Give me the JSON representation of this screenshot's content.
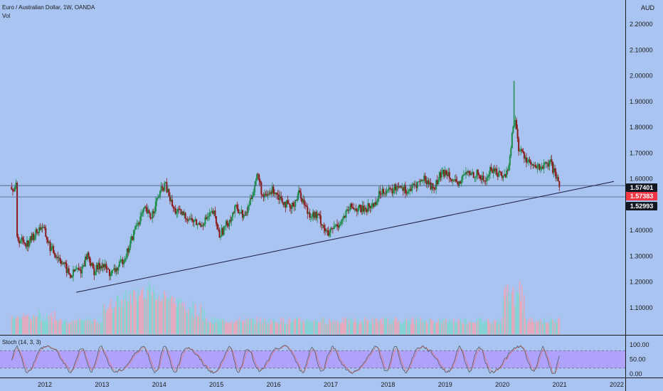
{
  "header": {
    "symbol_title": "Euro / Australian Dollar, 1W, OANDA",
    "volume_label": "Vol",
    "currency": "AUD"
  },
  "stoch": {
    "label": "Stoch (14, 3, 3)",
    "axis_ticks": [
      "100.00",
      "50.00",
      "0.00"
    ],
    "band_color": "#b197fc"
  },
  "price_axis": {
    "ticks": [
      "2.20000",
      "2.10000",
      "2.00000",
      "1.90000",
      "1.80000",
      "1.70000",
      "1.60000",
      "1.40000",
      "1.30000",
      "1.20000",
      "1.10000"
    ]
  },
  "time_axis": {
    "ticks": [
      "2012",
      "2013",
      "2014",
      "2015",
      "2016",
      "2017",
      "2018",
      "2019",
      "2020",
      "2021",
      "2022"
    ]
  },
  "price_badges": [
    {
      "label": "1.57401",
      "color": "#131722"
    },
    {
      "label": "1.57383",
      "color": "#f23645"
    },
    {
      "label": "1.52993",
      "color": "#131722"
    }
  ],
  "colors": {
    "background": "#a9c4f1",
    "up_candle": "#1e8c4a",
    "down_candle": "#8b1a1a",
    "trendline": "#1a1a40"
  },
  "chart_data": {
    "type": "candlestick",
    "symbol": "EURAUD",
    "interval": "1W",
    "y_range": [
      1.05,
      2.25
    ],
    "x_range": [
      2011.5,
      2022
    ],
    "price_path": [
      [
        2011.5,
        1.37
      ],
      [
        2011.7,
        1.35
      ],
      [
        2011.95,
        1.42
      ],
      [
        2012.1,
        1.33
      ],
      [
        2012.3,
        1.28
      ],
      [
        2012.45,
        1.22
      ],
      [
        2012.55,
        1.25
      ],
      [
        2012.62,
        1.24
      ],
      [
        2012.75,
        1.31
      ],
      [
        2012.85,
        1.24
      ],
      [
        2013.0,
        1.27
      ],
      [
        2013.15,
        1.23
      ],
      [
        2013.3,
        1.26
      ],
      [
        2013.45,
        1.32
      ],
      [
        2013.6,
        1.42
      ],
      [
        2013.75,
        1.48
      ],
      [
        2013.85,
        1.45
      ],
      [
        2014.0,
        1.54
      ],
      [
        2014.1,
        1.58
      ],
      [
        2014.25,
        1.48
      ],
      [
        2014.5,
        1.45
      ],
      [
        2014.7,
        1.42
      ],
      [
        2014.95,
        1.47
      ],
      [
        2015.05,
        1.38
      ],
      [
        2015.2,
        1.43
      ],
      [
        2015.35,
        1.49
      ],
      [
        2015.5,
        1.45
      ],
      [
        2015.65,
        1.56
      ],
      [
        2015.72,
        1.62
      ],
      [
        2015.82,
        1.52
      ],
      [
        2016.0,
        1.56
      ],
      [
        2016.15,
        1.52
      ],
      [
        2016.3,
        1.48
      ],
      [
        2016.45,
        1.55
      ],
      [
        2016.6,
        1.47
      ],
      [
        2016.8,
        1.45
      ],
      [
        2016.95,
        1.38
      ],
      [
        2017.05,
        1.41
      ],
      [
        2017.2,
        1.44
      ],
      [
        2017.35,
        1.49
      ],
      [
        2017.55,
        1.48
      ],
      [
        2017.75,
        1.5
      ],
      [
        2017.9,
        1.56
      ],
      [
        2018.05,
        1.55
      ],
      [
        2018.2,
        1.58
      ],
      [
        2018.35,
        1.55
      ],
      [
        2018.5,
        1.58
      ],
      [
        2018.65,
        1.6
      ],
      [
        2018.8,
        1.56
      ],
      [
        2018.9,
        1.61
      ],
      [
        2019.05,
        1.63
      ],
      [
        2019.2,
        1.57
      ],
      [
        2019.35,
        1.62
      ],
      [
        2019.55,
        1.62
      ],
      [
        2019.7,
        1.59
      ],
      [
        2019.8,
        1.64
      ],
      [
        2019.95,
        1.62
      ],
      [
        2020.05,
        1.61
      ],
      [
        2020.12,
        1.66
      ],
      [
        2020.18,
        1.79
      ],
      [
        2020.22,
        1.84
      ],
      [
        2020.28,
        1.72
      ],
      [
        2020.38,
        1.69
      ],
      [
        2020.55,
        1.64
      ],
      [
        2020.75,
        1.65
      ],
      [
        2020.85,
        1.66
      ],
      [
        2020.92,
        1.61
      ],
      [
        2021.0,
        1.57
      ]
    ],
    "spike_high": [
      2020.2,
      1.98
    ],
    "trendline": {
      "from": [
        2012.55,
        1.16
      ],
      "to": [
        2021.95,
        1.59
      ]
    },
    "horizontal_levels": [
      1.57401,
      1.52993
    ],
    "last_price": 1.57383,
    "stoch_overbought": 80,
    "stoch_oversold": 20
  }
}
